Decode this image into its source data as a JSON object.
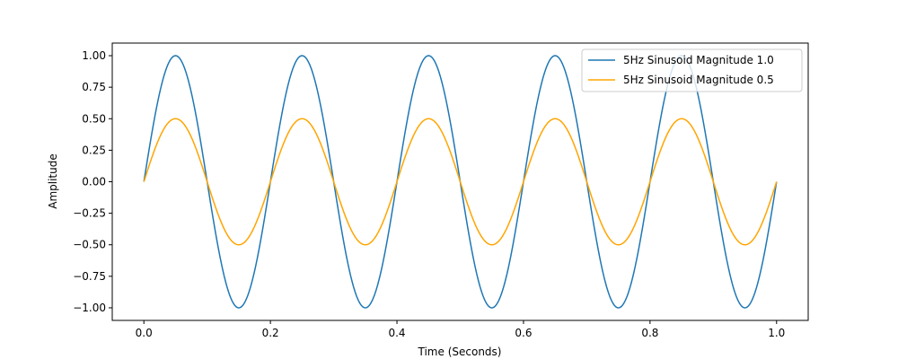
{
  "chart_data": {
    "type": "line",
    "title": "",
    "xlabel": "Time (Seconds)",
    "ylabel": "Amplitude",
    "xlim": [
      -0.05,
      1.05
    ],
    "ylim": [
      -1.1,
      1.1
    ],
    "grid": false,
    "legend_position": "top-right",
    "x_ticks": [
      0.0,
      0.2,
      0.4,
      0.6,
      0.8,
      1.0
    ],
    "x_tick_labels": [
      "0.0",
      "0.2",
      "0.4",
      "0.6",
      "0.8",
      "1.0"
    ],
    "y_ticks": [
      1.0,
      0.75,
      0.5,
      0.25,
      0.0,
      -0.25,
      -0.5,
      -0.75,
      -1.0
    ],
    "y_tick_labels": [
      "1.00",
      "0.75",
      "0.50",
      "0.25",
      "0.00",
      "−0.25",
      "−0.50",
      "−0.75",
      "−1.00"
    ],
    "x_range": [
      0.0,
      1.0
    ],
    "series": [
      {
        "name": "5Hz Sinusoid Magnitude 1.0",
        "frequency_hz": 5,
        "amplitude": 1.0,
        "color": "#1f77b4"
      },
      {
        "name": "5Hz Sinusoid Magnitude 0.5",
        "frequency_hz": 5,
        "amplitude": 0.5,
        "color": "#ffa500"
      }
    ]
  }
}
